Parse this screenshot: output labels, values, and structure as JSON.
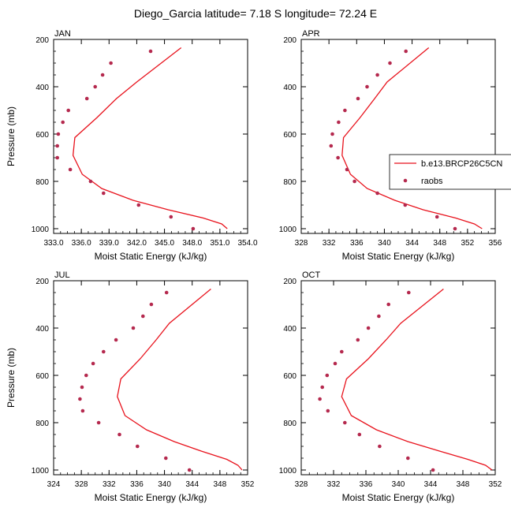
{
  "figure": {
    "title": "Diego_Garcia  latitude= 7.18 S longitude= 72.24 E"
  },
  "colors": {
    "model": "#e8121c",
    "raobs": "#b5294e",
    "axis": "#000000"
  },
  "legend": {
    "model_label": "b.e13.BRCP26C5CN",
    "raobs_label": "raobs"
  },
  "chart_data": [
    {
      "type": "line",
      "panel": "JAN",
      "title": "JAN",
      "xlabel": "Moist Static Energy (kJ/kg)",
      "ylabel": "Pressure (mb)",
      "xlim": [
        333,
        354
      ],
      "ylim": [
        200,
        1020
      ],
      "x_ticks": [
        "333.0",
        "336.0",
        "339.0",
        "342.0",
        "345.0",
        "348.0",
        "351.0",
        "354.0"
      ],
      "y_ticks": [
        "200",
        "400",
        "600",
        "800",
        "1000"
      ],
      "grid": false,
      "series": [
        {
          "name": "b.e13.BRCP26C5CN",
          "style": "line",
          "points": [
            [
              346.8,
              235
            ],
            [
              342.0,
              380
            ],
            [
              339.8,
              450
            ],
            [
              337.7,
              530
            ],
            [
              335.3,
              615
            ],
            [
              335.1,
              690
            ],
            [
              336.1,
              770
            ],
            [
              338.2,
              830
            ],
            [
              341.6,
              880
            ],
            [
              345.4,
              920
            ],
            [
              349.2,
              955
            ],
            [
              351.2,
              980
            ],
            [
              351.8,
              1000
            ]
          ]
        },
        {
          "name": "raobs",
          "style": "markers",
          "points": [
            [
              343.5,
              250
            ],
            [
              339.2,
              300
            ],
            [
              338.3,
              350
            ],
            [
              337.5,
              400
            ],
            [
              336.6,
              450
            ],
            [
              334.6,
              500
            ],
            [
              334.0,
              550
            ],
            [
              333.5,
              600
            ],
            [
              333.4,
              650
            ],
            [
              333.4,
              700
            ],
            [
              334.8,
              750
            ],
            [
              337.0,
              800
            ],
            [
              338.4,
              850
            ],
            [
              342.2,
              900
            ],
            [
              345.7,
              950
            ],
            [
              348.1,
              1000
            ]
          ]
        }
      ]
    },
    {
      "type": "line",
      "panel": "APR",
      "title": "APR",
      "xlabel": "Moist Static Energy (kJ/kg)",
      "ylabel": "",
      "xlim": [
        328,
        356
      ],
      "ylim": [
        200,
        1020
      ],
      "x_ticks": [
        "328",
        "332",
        "336",
        "340",
        "344",
        "348",
        "352",
        "356"
      ],
      "y_ticks": [
        "200",
        "400",
        "600",
        "800",
        "1000"
      ],
      "grid": false,
      "series": [
        {
          "name": "b.e13.BRCP26C5CN",
          "style": "line",
          "points": [
            [
              346.4,
              235
            ],
            [
              340.4,
              380
            ],
            [
              338.6,
              450
            ],
            [
              336.5,
              530
            ],
            [
              334.1,
              615
            ],
            [
              333.9,
              690
            ],
            [
              335.1,
              770
            ],
            [
              337.5,
              830
            ],
            [
              341.5,
              880
            ],
            [
              345.6,
              920
            ],
            [
              350.3,
              955
            ],
            [
              353.0,
              980
            ],
            [
              354.1,
              1000
            ]
          ]
        },
        {
          "name": "raobs",
          "style": "markers",
          "points": [
            [
              343.1,
              250
            ],
            [
              340.8,
              300
            ],
            [
              339.0,
              350
            ],
            [
              337.5,
              400
            ],
            [
              336.2,
              450
            ],
            [
              334.3,
              500
            ],
            [
              333.4,
              550
            ],
            [
              332.5,
              600
            ],
            [
              332.3,
              650
            ],
            [
              333.3,
              700
            ],
            [
              334.6,
              750
            ],
            [
              335.7,
              800
            ],
            [
              339.0,
              850
            ],
            [
              343.0,
              900
            ],
            [
              347.6,
              950
            ],
            [
              350.2,
              1000
            ]
          ]
        }
      ]
    },
    {
      "type": "line",
      "panel": "JUL",
      "title": "JUL",
      "xlabel": "Moist Static Energy (kJ/kg)",
      "ylabel": "Pressure (mb)",
      "xlim": [
        324,
        352
      ],
      "ylim": [
        200,
        1020
      ],
      "x_ticks": [
        "324",
        "328",
        "332",
        "336",
        "340",
        "344",
        "348",
        "352"
      ],
      "y_ticks": [
        "200",
        "400",
        "600",
        "800",
        "1000"
      ],
      "grid": false,
      "series": [
        {
          "name": "b.e13.BRCP26C5CN",
          "style": "line",
          "points": [
            [
              346.7,
              235
            ],
            [
              340.7,
              380
            ],
            [
              338.8,
              450
            ],
            [
              336.5,
              530
            ],
            [
              333.7,
              615
            ],
            [
              333.2,
              690
            ],
            [
              334.3,
              770
            ],
            [
              337.4,
              830
            ],
            [
              341.4,
              880
            ],
            [
              345.3,
              920
            ],
            [
              349.0,
              955
            ],
            [
              350.6,
              980
            ],
            [
              351.2,
              1000
            ]
          ]
        },
        {
          "name": "raobs",
          "style": "markers",
          "points": [
            [
              340.3,
              250
            ],
            [
              338.1,
              300
            ],
            [
              336.9,
              350
            ],
            [
              335.5,
              400
            ],
            [
              333.0,
              450
            ],
            [
              331.2,
              500
            ],
            [
              329.7,
              550
            ],
            [
              328.7,
              600
            ],
            [
              328.1,
              650
            ],
            [
              327.8,
              700
            ],
            [
              328.2,
              750
            ],
            [
              330.5,
              800
            ],
            [
              333.5,
              850
            ],
            [
              336.1,
              900
            ],
            [
              340.2,
              950
            ],
            [
              343.6,
              1000
            ]
          ]
        }
      ]
    },
    {
      "type": "line",
      "panel": "OCT",
      "title": "OCT",
      "xlabel": "Moist Static Energy (kJ/kg)",
      "ylabel": "",
      "xlim": [
        328,
        352
      ],
      "ylim": [
        200,
        1020
      ],
      "x_ticks": [
        "328",
        "332",
        "336",
        "340",
        "344",
        "348",
        "352"
      ],
      "y_ticks": [
        "200",
        "400",
        "600",
        "800",
        "1000"
      ],
      "grid": false,
      "series": [
        {
          "name": "b.e13.BRCP26C5CN",
          "style": "line",
          "points": [
            [
              345.6,
              235
            ],
            [
              340.3,
              380
            ],
            [
              338.5,
              450
            ],
            [
              336.3,
              530
            ],
            [
              333.6,
              615
            ],
            [
              333.0,
              690
            ],
            [
              334.2,
              770
            ],
            [
              337.3,
              830
            ],
            [
              341.2,
              880
            ],
            [
              345.1,
              920
            ],
            [
              348.6,
              955
            ],
            [
              350.8,
              980
            ],
            [
              351.6,
              1000
            ]
          ]
        },
        {
          "name": "raobs",
          "style": "markers",
          "points": [
            [
              341.3,
              250
            ],
            [
              338.8,
              300
            ],
            [
              337.6,
              350
            ],
            [
              336.3,
              400
            ],
            [
              335.0,
              450
            ],
            [
              333.0,
              500
            ],
            [
              332.2,
              550
            ],
            [
              331.2,
              600
            ],
            [
              330.6,
              650
            ],
            [
              330.3,
              700
            ],
            [
              331.3,
              750
            ],
            [
              333.4,
              800
            ],
            [
              335.2,
              850
            ],
            [
              337.7,
              900
            ],
            [
              341.2,
              950
            ],
            [
              344.3,
              1000
            ]
          ]
        }
      ]
    }
  ]
}
